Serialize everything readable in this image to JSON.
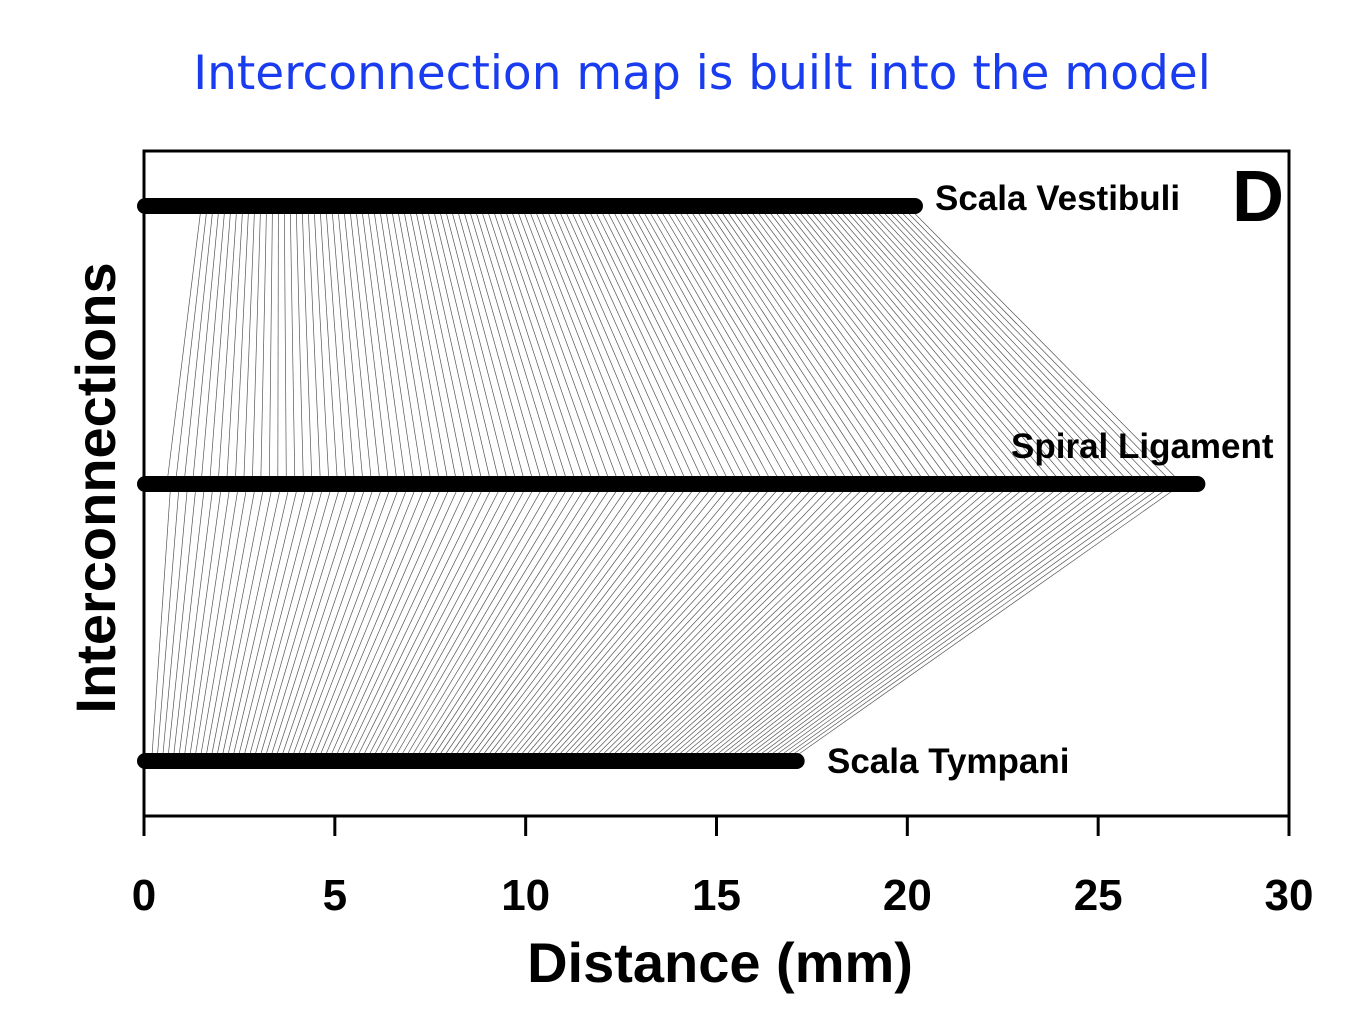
{
  "title": "Interconnection map is built into the model",
  "title_color": "#1a3cf0",
  "chart_data": {
    "type": "line",
    "panel_label": "D",
    "xlabel": "Distance (mm)",
    "ylabel": "Interconnections",
    "xlim": [
      0,
      30
    ],
    "xticks": [
      0,
      5,
      10,
      15,
      20,
      25,
      30
    ],
    "grid": false,
    "tracks": [
      {
        "name": "Scala Vestibuli",
        "x_range": [
          0,
          20.2
        ]
      },
      {
        "name": "Spiral Ligament",
        "x_range": [
          0,
          27.6
        ]
      },
      {
        "name": "Scala Tympani",
        "x_range": [
          0,
          17.1
        ]
      }
    ],
    "connections": [
      {
        "from": "Scala Vestibuli",
        "to": "Spiral Ligament",
        "from_range": [
          1.5,
          20.0
        ],
        "to_range": [
          0.6,
          27.2
        ],
        "count": 120
      },
      {
        "from": "Spiral Ligament",
        "to": "Scala Tympani",
        "from_range": [
          0.7,
          27.2
        ],
        "to_range": [
          0.2,
          16.9
        ],
        "count": 120
      }
    ]
  }
}
